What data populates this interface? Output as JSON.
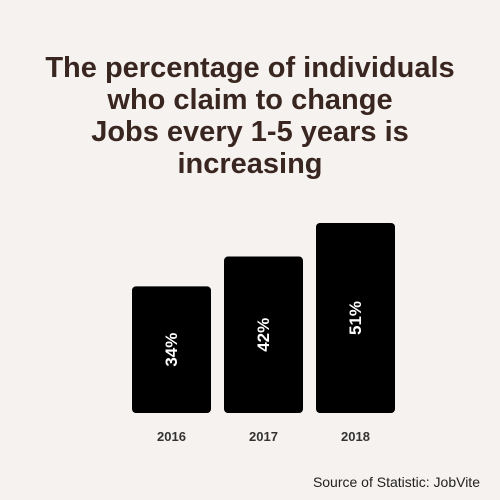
{
  "title_lines": [
    "The percentage of individuals",
    "who claim to change",
    "Jobs every 1-5 years is",
    "increasing"
  ],
  "source": "Source of Statistic: JobVite",
  "colors": {
    "background": "#f6f2ef",
    "title": "#3a2620",
    "bar": "#000000",
    "bar_label": "#ffffff",
    "tick_label": "#333333"
  },
  "chart_data": {
    "type": "bar",
    "title": "The percentage of individuals who claim to change Jobs every 1-5 years is increasing",
    "categories": [
      "2016",
      "2017",
      "2018"
    ],
    "values": [
      34,
      42,
      51
    ],
    "data_labels": [
      "34%",
      "42%",
      "51%"
    ],
    "value_unit": "%",
    "data_label_orientation": "vertical",
    "xlabel": "",
    "ylabel": "",
    "ylim": [
      0,
      51
    ],
    "grid": false,
    "legend": "none"
  }
}
